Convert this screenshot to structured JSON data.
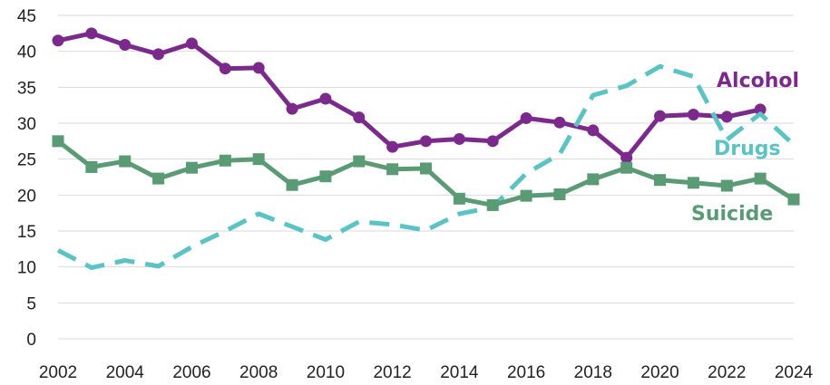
{
  "chart_data": {
    "type": "line",
    "title": "",
    "xlabel": "",
    "ylabel": "",
    "ylim": [
      0,
      45
    ],
    "xlim": [
      2002,
      2024
    ],
    "grid": true,
    "x_ticks": [
      "2002",
      "2004",
      "2006",
      "2008",
      "2010",
      "2012",
      "2014",
      "2016",
      "2018",
      "2020",
      "2022",
      "2024"
    ],
    "y_ticks": [
      "0",
      "5",
      "10",
      "15",
      "20",
      "25",
      "30",
      "35",
      "40",
      "45"
    ],
    "series": [
      {
        "name": "Alcohol",
        "color": "#7b2a8c",
        "style": "solid",
        "marker": "circle",
        "x": [
          2002,
          2003,
          2004,
          2005,
          2006,
          2007,
          2008,
          2009,
          2010,
          2011,
          2012,
          2013,
          2014,
          2015,
          2016,
          2017,
          2018,
          2019,
          2020,
          2021,
          2022,
          2023
        ],
        "values": [
          41.5,
          42.5,
          40.9,
          39.6,
          41.1,
          37.6,
          37.7,
          32.0,
          33.4,
          30.8,
          26.7,
          27.5,
          27.8,
          27.5,
          30.7,
          30.1,
          29.0,
          25.2,
          31.0,
          31.2,
          30.9,
          31.9
        ]
      },
      {
        "name": "Drugs",
        "color": "#5bc3c3",
        "style": "dashed",
        "marker": "none",
        "x": [
          2002,
          2003,
          2004,
          2005,
          2006,
          2007,
          2008,
          2009,
          2010,
          2011,
          2012,
          2013,
          2014,
          2015,
          2016,
          2017,
          2018,
          2019,
          2020,
          2021,
          2022,
          2023,
          2024
        ],
        "values": [
          12.3,
          9.9,
          10.9,
          10.1,
          12.8,
          15.0,
          17.4,
          15.6,
          13.8,
          16.3,
          15.9,
          15.1,
          17.4,
          18.3,
          23.0,
          25.7,
          33.9,
          35.2,
          37.9,
          36.5,
          27.7,
          31.3,
          27.0
        ]
      },
      {
        "name": "Suicide",
        "color": "#5a9a74",
        "style": "solid",
        "marker": "square",
        "x": [
          2002,
          2003,
          2004,
          2005,
          2006,
          2007,
          2008,
          2009,
          2010,
          2011,
          2012,
          2013,
          2014,
          2015,
          2016,
          2017,
          2018,
          2019,
          2020,
          2021,
          2022,
          2023,
          2024
        ],
        "values": [
          27.5,
          23.9,
          24.7,
          22.3,
          23.8,
          24.8,
          25.0,
          21.4,
          22.6,
          24.7,
          23.6,
          23.7,
          19.5,
          18.6,
          19.9,
          20.1,
          22.2,
          23.8,
          22.1,
          21.7,
          21.3,
          22.3,
          19.4
        ]
      }
    ]
  }
}
